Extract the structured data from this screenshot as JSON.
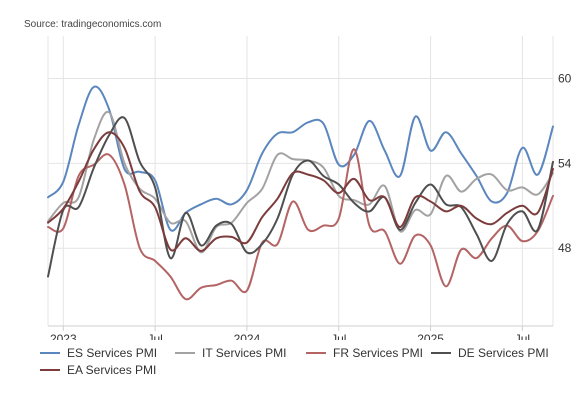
{
  "source": "Source: tradingeconomics.com",
  "chart_data": {
    "type": "line",
    "title": "",
    "xlabel": "",
    "ylabel": "",
    "x_ticks": [
      "2023",
      "Jul",
      "2024",
      "Jul",
      "2025",
      "Jul"
    ],
    "y_ticks": [
      "48",
      "54",
      "60"
    ],
    "ylim": [
      42.5,
      63
    ],
    "x_range": [
      "2022-12",
      "2025-09"
    ],
    "grid": true,
    "legend_position": "bottom",
    "categories": [
      "2022-12",
      "2023-01",
      "2023-02",
      "2023-03",
      "2023-04",
      "2023-05",
      "2023-06",
      "2023-07",
      "2023-08",
      "2023-09",
      "2023-10",
      "2023-11",
      "2023-12",
      "2024-01",
      "2024-02",
      "2024-03",
      "2024-04",
      "2024-05",
      "2024-06",
      "2024-07",
      "2024-08",
      "2024-09",
      "2024-10",
      "2024-11",
      "2024-12",
      "2025-01",
      "2025-02",
      "2025-03",
      "2025-04",
      "2025-05",
      "2025-06",
      "2025-07",
      "2025-08",
      "2025-09"
    ],
    "series": [
      {
        "name": "ES Services PMI",
        "color": "#5b87be",
        "values": [
          51.6,
          52.7,
          56.7,
          59.4,
          57.8,
          53.6,
          53.4,
          52.8,
          49.3,
          50.5,
          51.1,
          51.5,
          51.1,
          52.1,
          54.7,
          56.1,
          56.2,
          56.9,
          56.8,
          53.9,
          54.6,
          57.0,
          54.9,
          53.1,
          57.3,
          54.9,
          56.2,
          54.7,
          53.1,
          51.3,
          51.9,
          55.1,
          53.2,
          56.6
        ]
      },
      {
        "name": "IT Services PMI",
        "color": "#a3a3a3",
        "values": [
          49.9,
          51.2,
          51.6,
          55.7,
          57.6,
          54.0,
          52.2,
          51.5,
          49.8,
          49.9,
          47.7,
          49.5,
          49.8,
          51.2,
          52.2,
          54.6,
          54.3,
          54.2,
          53.7,
          51.7,
          51.4,
          51.1,
          52.4,
          49.2,
          50.7,
          50.4,
          53.1,
          52.0,
          52.9,
          53.2,
          52.1,
          52.3,
          51.8,
          53.3
        ]
      },
      {
        "name": "FR Services PMI",
        "color": "#b46464",
        "values": [
          49.5,
          49.4,
          53.1,
          53.9,
          54.6,
          52.5,
          48.0,
          47.1,
          46.0,
          44.4,
          45.2,
          45.4,
          45.7,
          45.0,
          48.4,
          48.3,
          51.3,
          49.3,
          49.6,
          50.1,
          55.0,
          49.6,
          49.2,
          46.9,
          48.9,
          48.2,
          45.3,
          47.9,
          47.3,
          48.7,
          49.6,
          48.5,
          49.2,
          51.7
        ]
      },
      {
        "name": "DE Services PMI",
        "color": "#4f4f4f",
        "values": [
          46.0,
          50.7,
          50.9,
          53.7,
          56.0,
          57.2,
          54.1,
          52.3,
          47.3,
          50.5,
          48.2,
          49.6,
          49.7,
          47.7,
          48.3,
          50.1,
          53.2,
          54.2,
          53.1,
          52.5,
          51.2,
          50.6,
          51.6,
          49.3,
          51.2,
          52.5,
          51.1,
          50.9,
          49.0,
          47.1,
          49.7,
          50.6,
          49.3,
          54.1
        ]
      },
      {
        "name": "EA Services PMI",
        "color": "#7d3c3c",
        "values": [
          49.8,
          50.8,
          52.7,
          55.0,
          56.2,
          55.1,
          52.0,
          50.9,
          47.9,
          48.7,
          47.8,
          48.7,
          48.8,
          48.4,
          50.2,
          51.5,
          53.3,
          53.2,
          52.8,
          51.9,
          52.9,
          51.4,
          51.6,
          49.5,
          51.6,
          51.3,
          50.6,
          51.0,
          50.1,
          49.7,
          50.5,
          51.0,
          50.5,
          53.6
        ]
      }
    ]
  }
}
